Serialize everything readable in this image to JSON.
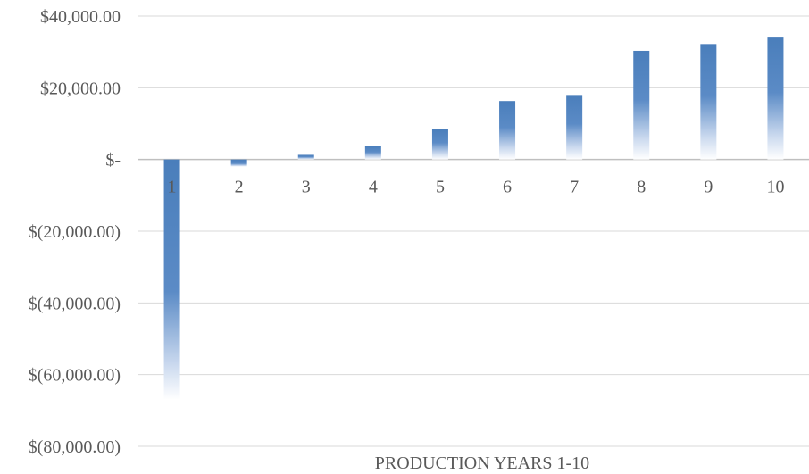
{
  "chart_data": {
    "type": "bar",
    "title": "",
    "xlabel": "PRODUCTION YEARS 1-10",
    "ylabel": "",
    "categories": [
      "1",
      "2",
      "3",
      "4",
      "5",
      "6",
      "7",
      "8",
      "9",
      "10"
    ],
    "values": [
      -67000,
      -2000,
      1300,
      3800,
      8500,
      16300,
      18000,
      30300,
      32200,
      34000
    ],
    "ylim": [
      -80000,
      40000
    ],
    "yticks": [
      40000,
      20000,
      0,
      -20000,
      -40000,
      -60000,
      -80000
    ],
    "ytick_labels": [
      "$40,000.00",
      "$20,000.00",
      "$-",
      "$(20,000.00)",
      "$(40,000.00)",
      "$(60,000.00)",
      "$(80,000.00)"
    ],
    "grid": true,
    "legend": "none",
    "bar_color": "#4a7ebb",
    "bar_fill": "gradient fading to white at the bar end away from zero"
  }
}
